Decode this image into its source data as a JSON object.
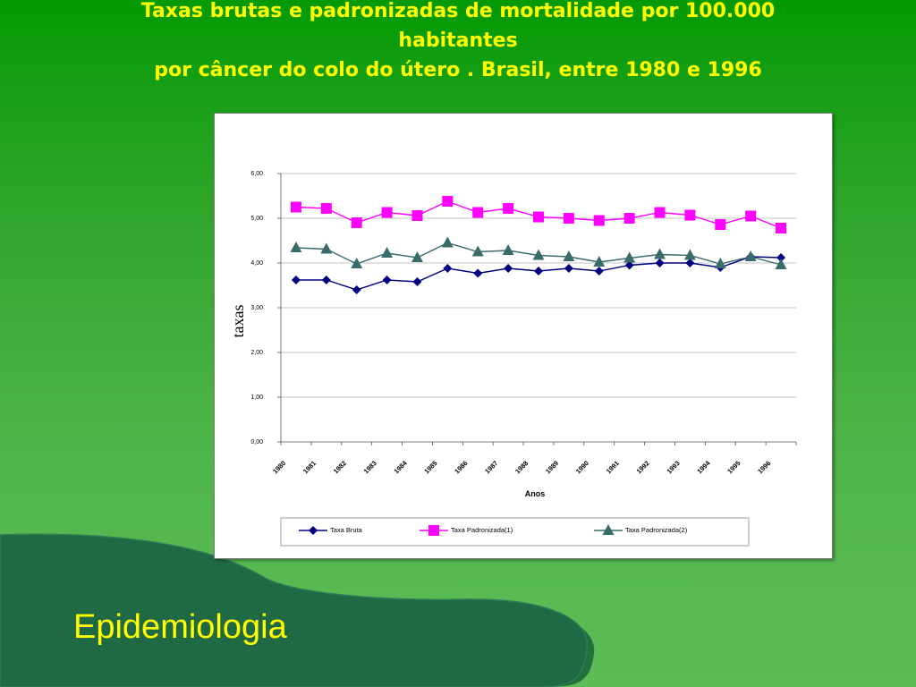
{
  "slide": {
    "title_lines": [
      "Taxas brutas e padronizadas de mortalidade por 100.000",
      "habitantes",
      "por câncer do colo do útero . Brasil, entre 1980 e 1996"
    ],
    "footer": "Epidemiologia"
  },
  "colors": {
    "title": "#ffff00",
    "footer": "#ffff00",
    "corner_shape": "#1f6a45",
    "series_bruta": "#000080",
    "series_padronizada1": "#ff00ff",
    "series_padronizada2": "#3a6b6b"
  },
  "chart_data": {
    "type": "line",
    "title": "",
    "xlabel": "Anos",
    "ylabel": "taxas",
    "ylim": [
      0,
      6
    ],
    "y_ticks": [
      "0,00",
      "1,00",
      "2,00",
      "3,00",
      "4,00",
      "5,00",
      "6,00"
    ],
    "x_tick_labels": [
      "1980",
      "1981",
      "1982",
      "1983",
      "1984",
      "1985",
      "1986",
      "1987",
      "1988",
      "1989",
      "1990",
      "1991",
      "1992",
      "1993",
      "1994",
      "1995",
      "1996"
    ],
    "grid": "horizontal",
    "legend_position": "bottom",
    "series": [
      {
        "name": "Taxa Bruta",
        "marker": "diamond",
        "color": "#000080",
        "values": [
          3.62,
          3.62,
          3.4,
          3.62,
          3.58,
          3.88,
          3.77,
          3.88,
          3.82,
          3.88,
          3.82,
          3.95,
          4.0,
          4.0,
          3.9,
          4.14,
          4.12
        ]
      },
      {
        "name": "Taxa Padronizada(1)",
        "marker": "square",
        "color": "#ff00ff",
        "values": [
          5.25,
          5.22,
          4.9,
          5.13,
          5.06,
          5.38,
          5.13,
          5.22,
          5.03,
          5.0,
          4.95,
          5.0,
          5.13,
          5.07,
          4.86,
          5.05,
          4.78
        ]
      },
      {
        "name": "Taxa Padronizada(2)",
        "marker": "triangle",
        "color": "#3a6b6b",
        "values": [
          4.34,
          4.31,
          3.98,
          4.22,
          4.12,
          4.45,
          4.25,
          4.28,
          4.17,
          4.14,
          4.02,
          4.11,
          4.19,
          4.17,
          3.98,
          4.14,
          3.96
        ]
      }
    ]
  }
}
